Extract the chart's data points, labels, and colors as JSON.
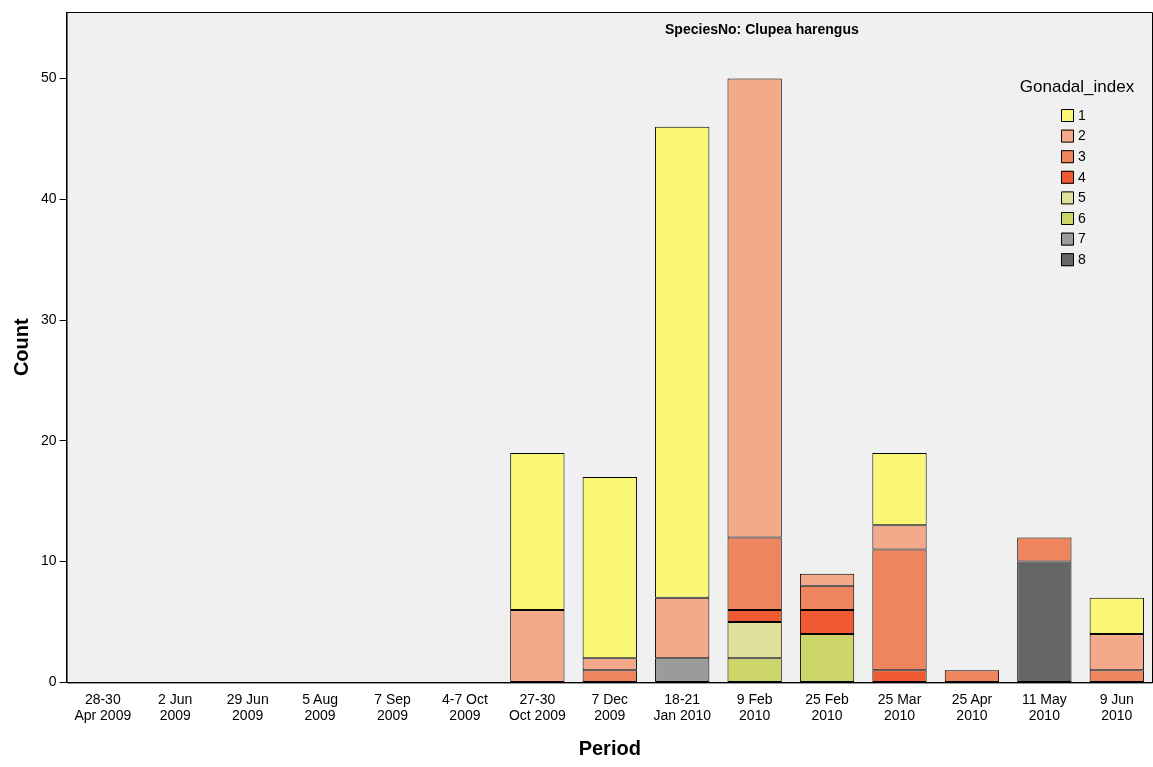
{
  "chart_data": {
    "type": "bar",
    "title": "SpeciesNo: Clupea harengus",
    "xlabel": "Period",
    "ylabel": "Count",
    "legend_title": "Gonadal_index",
    "legend": "top right",
    "stacked": true,
    "grid": false,
    "categories": [
      "28-30\nApr 2009",
      "2 Jun\n2009",
      "29 Jun\n2009",
      "5 Aug\n2009",
      "7 Sep\n2009",
      "4-7 Oct\n2009",
      "27-30\nOct 2009",
      "7 Dec\n2009",
      "18-21\nJan 2010",
      "9 Feb\n2010",
      "25 Feb\n2010",
      "25 Mar\n2010",
      "25 Apr\n2010",
      "11 May\n2010",
      "9 Jun\n2010"
    ],
    "ylim": [
      0,
      55.5
    ],
    "yticks": [
      0,
      10,
      20,
      30,
      40,
      50
    ],
    "series": [
      {
        "name": "8",
        "color": "#666666",
        "values": [
          null,
          null,
          null,
          null,
          null,
          null,
          null,
          null,
          null,
          null,
          null,
          null,
          null,
          10,
          null
        ]
      },
      {
        "name": "7",
        "color": "#9b9b9b",
        "values": [
          null,
          null,
          null,
          null,
          null,
          null,
          null,
          null,
          2,
          null,
          null,
          null,
          null,
          null,
          null
        ]
      },
      {
        "name": "6",
        "color": "#cdd668",
        "values": [
          null,
          null,
          null,
          null,
          null,
          null,
          null,
          null,
          null,
          2,
          4,
          null,
          null,
          null,
          null
        ]
      },
      {
        "name": "5",
        "color": "#dfe09a",
        "values": [
          null,
          null,
          null,
          null,
          null,
          null,
          null,
          null,
          null,
          3,
          null,
          null,
          null,
          null,
          null
        ]
      },
      {
        "name": "4",
        "color": "#f05a33",
        "values": [
          null,
          null,
          null,
          null,
          null,
          null,
          null,
          null,
          null,
          1,
          2,
          1,
          null,
          null,
          null
        ]
      },
      {
        "name": "3",
        "color": "#ee855e",
        "values": [
          null,
          null,
          null,
          null,
          null,
          null,
          null,
          1,
          null,
          6,
          2,
          10,
          1,
          2,
          1
        ]
      },
      {
        "name": "2",
        "color": "#f4a98a",
        "values": [
          null,
          null,
          null,
          null,
          null,
          null,
          6,
          1,
          5,
          38,
          1,
          2,
          null,
          null,
          3
        ]
      },
      {
        "name": "1",
        "color": "#fbf776",
        "values": [
          null,
          null,
          null,
          null,
          null,
          null,
          13,
          15,
          39,
          null,
          null,
          6,
          null,
          null,
          3
        ]
      }
    ]
  }
}
